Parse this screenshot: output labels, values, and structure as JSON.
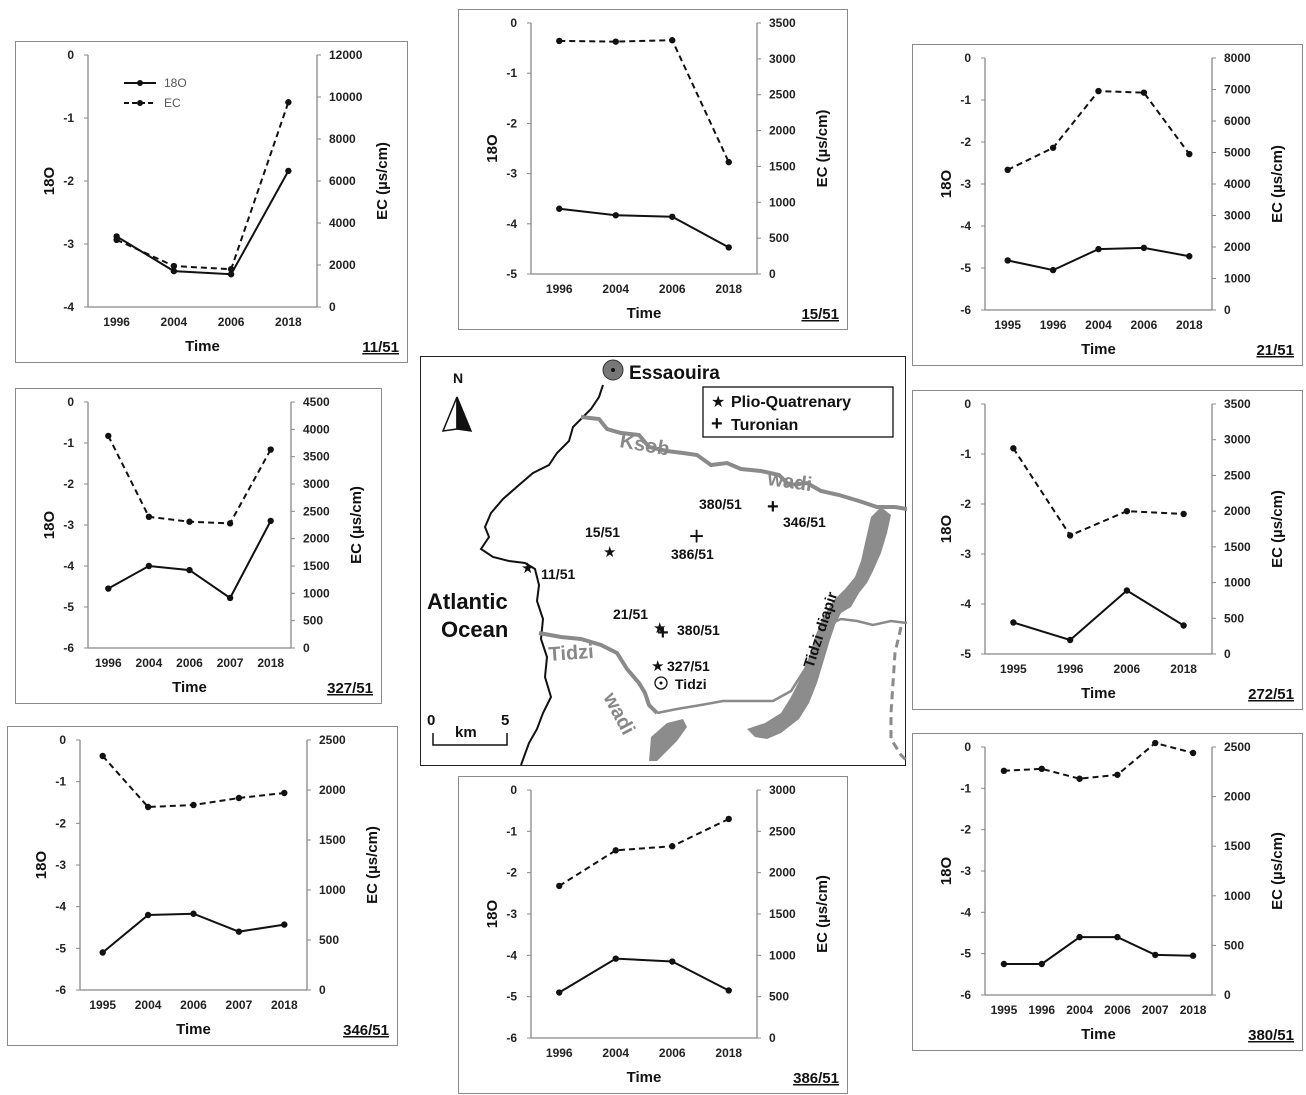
{
  "chart_data": [
    {
      "id": "11/51",
      "type": "line",
      "well_label": "11/51",
      "xlabel": "Time",
      "ylabel_left": "18O",
      "ylabel_right": "EC (µs/cm)",
      "categories": [
        "1996",
        "2004",
        "2006",
        "2018"
      ],
      "ylim_left": [
        -4,
        0
      ],
      "yticks_left": [
        "0",
        "-1",
        "-2",
        "-3",
        "-4"
      ],
      "ylim_right": [
        0,
        12000
      ],
      "yticks_right": [
        "12000",
        "10000",
        "8000",
        "6000",
        "4000",
        "2000",
        "0"
      ],
      "legend": [
        "18O",
        "EC"
      ],
      "series": [
        {
          "name": "18O",
          "axis": "left",
          "style": "solid",
          "values": [
            -2.88,
            -3.43,
            -3.48,
            -1.84
          ]
        },
        {
          "name": "EC",
          "axis": "right",
          "style": "dashed",
          "values": [
            3200,
            1950,
            1800,
            9750
          ]
        }
      ]
    },
    {
      "id": "15/51",
      "type": "line",
      "well_label": "15/51",
      "xlabel": "Time",
      "ylabel_left": "18O",
      "ylabel_right": "EC (µs/cm)",
      "categories": [
        "1996",
        "2004",
        "2006",
        "2018"
      ],
      "ylim_left": [
        -5,
        0
      ],
      "yticks_left": [
        "0",
        "-1",
        "-2",
        "-3",
        "-4",
        "-5"
      ],
      "ylim_right": [
        0,
        3500
      ],
      "yticks_right": [
        "3500",
        "3000",
        "2500",
        "2000",
        "1500",
        "1000",
        "500",
        "0"
      ],
      "series": [
        {
          "name": "18O",
          "axis": "left",
          "style": "solid",
          "values": [
            -3.7,
            -3.83,
            -3.86,
            -4.47
          ]
        },
        {
          "name": "EC",
          "axis": "right",
          "style": "dashed",
          "values": [
            3250,
            3240,
            3260,
            1560
          ]
        }
      ]
    },
    {
      "id": "21/51",
      "type": "line",
      "well_label": "21/51",
      "xlabel": "Time",
      "ylabel_left": "18O",
      "ylabel_right": "EC (µs/cm)",
      "categories": [
        "1995",
        "1996",
        "2004",
        "2006",
        "2018"
      ],
      "ylim_left": [
        -6,
        0
      ],
      "yticks_left": [
        "0",
        "-1",
        "-2",
        "-3",
        "-4",
        "-5",
        "-6"
      ],
      "ylim_right": [
        0,
        8000
      ],
      "yticks_right": [
        "8000",
        "7000",
        "6000",
        "5000",
        "4000",
        "3000",
        "2000",
        "1000",
        "0"
      ],
      "series": [
        {
          "name": "18O",
          "axis": "left",
          "style": "solid",
          "values": [
            -4.82,
            -5.05,
            -4.55,
            -4.52,
            -4.72
          ]
        },
        {
          "name": "EC",
          "axis": "right",
          "style": "dashed",
          "values": [
            4450,
            5150,
            6950,
            6900,
            4950
          ]
        }
      ]
    },
    {
      "id": "327/51",
      "type": "line",
      "well_label": "327/51",
      "xlabel": "Time",
      "ylabel_left": "18O",
      "ylabel_right": "EC (µs/cm)",
      "categories": [
        "1996",
        "2004",
        "2006",
        "2007",
        "2018"
      ],
      "ylim_left": [
        -6,
        0
      ],
      "yticks_left": [
        "0",
        "-1",
        "-2",
        "-3",
        "-4",
        "-5",
        "-6"
      ],
      "ylim_right": [
        0,
        4500
      ],
      "yticks_right": [
        "4500",
        "4000",
        "3500",
        "3000",
        "2500",
        "2000",
        "1500",
        "1000",
        "500",
        "0"
      ],
      "series": [
        {
          "name": "18O",
          "axis": "left",
          "style": "solid",
          "values": [
            -4.55,
            -4.0,
            -4.1,
            -4.78,
            -2.9
          ]
        },
        {
          "name": "EC",
          "axis": "right",
          "style": "dashed",
          "values": [
            3880,
            2400,
            2310,
            2280,
            3630
          ]
        }
      ]
    },
    {
      "id": "272/51",
      "type": "line",
      "well_label": "272/51",
      "xlabel": "Time",
      "ylabel_left": "18O",
      "ylabel_right": "EC (µs/cm)",
      "categories": [
        "1995",
        "1996",
        "2006",
        "2018"
      ],
      "ylim_left": [
        -5,
        0
      ],
      "yticks_left": [
        "0",
        "-1",
        "-2",
        "-3",
        "-4",
        "-5"
      ],
      "ylim_right": [
        0,
        3500
      ],
      "yticks_right": [
        "3500",
        "3000",
        "2500",
        "2000",
        "1500",
        "1000",
        "500",
        "0"
      ],
      "series": [
        {
          "name": "18O",
          "axis": "left",
          "style": "solid",
          "values": [
            -4.37,
            -4.72,
            -3.73,
            -4.43
          ]
        },
        {
          "name": "EC",
          "axis": "right",
          "style": "dashed",
          "values": [
            2880,
            1660,
            2000,
            1960
          ]
        }
      ]
    },
    {
      "id": "346/51",
      "type": "line",
      "well_label": "346/51",
      "xlabel": "Time",
      "ylabel_left": "18O",
      "ylabel_right": "EC (µs/cm)",
      "categories": [
        "1995",
        "2004",
        "2006",
        "2007",
        "2018"
      ],
      "ylim_left": [
        -6,
        0
      ],
      "yticks_left": [
        "0",
        "-1",
        "-2",
        "-3",
        "-4",
        "-5",
        "-6"
      ],
      "ylim_right": [
        0,
        2500
      ],
      "yticks_right": [
        "2500",
        "2000",
        "1500",
        "1000",
        "500",
        "0"
      ],
      "series": [
        {
          "name": "18O",
          "axis": "left",
          "style": "solid",
          "values": [
            -5.1,
            -4.2,
            -4.17,
            -4.6,
            -4.43
          ]
        },
        {
          "name": "EC",
          "axis": "right",
          "style": "dashed",
          "values": [
            2340,
            1830,
            1850,
            1920,
            1970
          ]
        }
      ]
    },
    {
      "id": "386/51",
      "type": "line",
      "well_label": "386/51",
      "xlabel": "Time",
      "ylabel_left": "18O",
      "ylabel_right": "EC (µs/cm)",
      "categories": [
        "1996",
        "2004",
        "2006",
        "2018"
      ],
      "ylim_left": [
        -6,
        0
      ],
      "yticks_left": [
        "0",
        "-1",
        "-2",
        "-3",
        "-4",
        "-5",
        "-6"
      ],
      "ylim_right": [
        0,
        3000
      ],
      "yticks_right": [
        "3000",
        "2500",
        "2000",
        "1500",
        "1000",
        "500",
        "0"
      ],
      "series": [
        {
          "name": "18O",
          "axis": "left",
          "style": "solid",
          "values": [
            -4.9,
            -4.08,
            -4.15,
            -4.85
          ]
        },
        {
          "name": "EC",
          "axis": "right",
          "style": "dashed",
          "values": [
            1840,
            2270,
            2320,
            2650
          ]
        }
      ]
    },
    {
      "id": "380/51",
      "type": "line",
      "well_label": "380/51",
      "xlabel": "Time",
      "ylabel_left": "18O",
      "ylabel_right": "EC (µs/cm)",
      "categories": [
        "1995",
        "1996",
        "2004",
        "2006",
        "2007",
        "2018"
      ],
      "ylim_left": [
        -6,
        0
      ],
      "yticks_left": [
        "0",
        "-1",
        "-2",
        "-3",
        "-4",
        "-5",
        "-6"
      ],
      "ylim_right": [
        0,
        2500
      ],
      "yticks_right": [
        "2500",
        "2000",
        "1500",
        "1000",
        "500",
        "0"
      ],
      "series": [
        {
          "name": "18O",
          "axis": "left",
          "style": "solid",
          "values": [
            -5.25,
            -5.25,
            -4.6,
            -4.6,
            -5.03,
            -5.05
          ]
        },
        {
          "name": "EC",
          "axis": "right",
          "style": "dashed",
          "values": [
            2260,
            2280,
            2180,
            2220,
            2540,
            2440
          ]
        }
      ]
    }
  ],
  "map": {
    "city": "Essaouira",
    "north": "N",
    "legend_plio": "Plio-Quatrenary",
    "legend_turonian": "Turonian",
    "ocean_line1": "Atlantic",
    "ocean_line2": "Ocean",
    "river_ksob": "Ksob",
    "river_ksob_wadi": "wadi",
    "river_tidzi": "Tidzi",
    "river_tidzi_wadi": "wadi",
    "diapir": "Tidzi diapir",
    "town": "Tidzi",
    "scale_zero": "0",
    "scale_unit": "km",
    "scale_five": "5",
    "sites": {
      "s11": "11/51",
      "s15": "15/51",
      "s21": "21/51",
      "s327": "327/51",
      "s380a": "380/51",
      "s346": "346/51",
      "s386": "386/51",
      "s380b": "380/51"
    }
  }
}
